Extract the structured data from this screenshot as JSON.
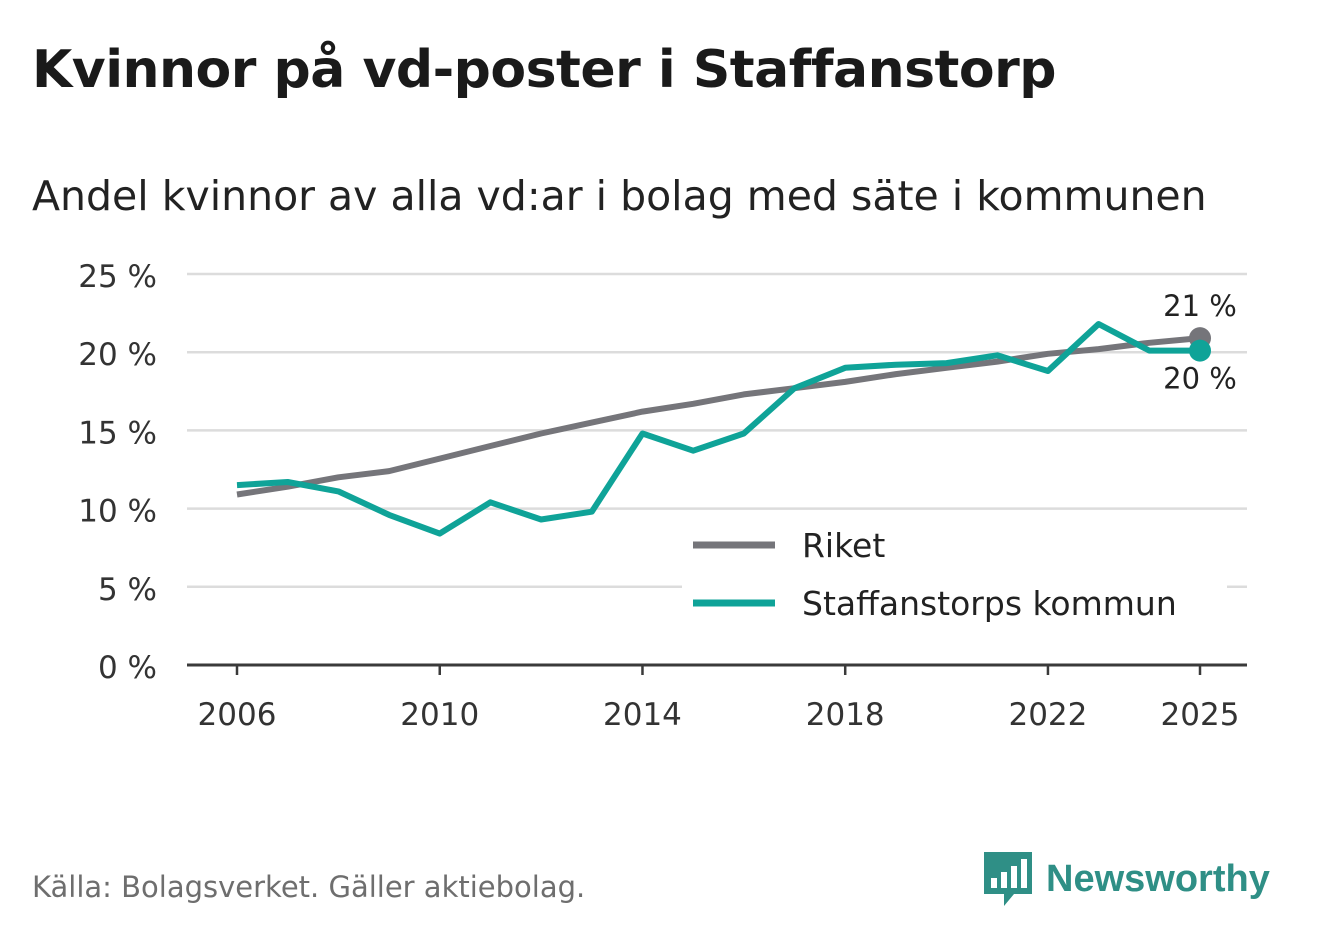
{
  "title": "Kvinnor på vd-poster i Staffanstorp",
  "subtitle": "Andel kvinnor av alla vd:ar i bolag med säte i kommunen",
  "source": "Källa: Bolagsverket. Gäller aktiebolag.",
  "brand": {
    "name": "Newsworthy",
    "icon": "newsworthy-logo-icon"
  },
  "colors": {
    "riket": "#75757a",
    "staffanstorp": "#0fa398",
    "grid": "#dcdcdc",
    "axis": "#3a3a3a",
    "brand": "#2f8f86"
  },
  "chart_data": {
    "type": "line",
    "title": "Kvinnor på vd-poster i Staffanstorp",
    "ylabel": "",
    "xlabel": "",
    "ylim": [
      0,
      25
    ],
    "xlim": [
      2006,
      2025
    ],
    "yticks": [
      0,
      5,
      10,
      15,
      20,
      25
    ],
    "ytick_labels": [
      "0 %",
      "5 %",
      "10 %",
      "15 %",
      "20 %",
      "25 %"
    ],
    "xticks": [
      2006,
      2010,
      2014,
      2018,
      2022,
      2025
    ],
    "xtick_labels": [
      "2006",
      "2010",
      "2014",
      "2018",
      "2022",
      "2025"
    ],
    "grid": true,
    "legend_position": "bottom-right",
    "x": [
      2006,
      2007,
      2008,
      2009,
      2010,
      2011,
      2012,
      2013,
      2014,
      2015,
      2016,
      2017,
      2018,
      2019,
      2020,
      2021,
      2022,
      2023,
      2024,
      2025
    ],
    "series": [
      {
        "name": "Riket",
        "key": "riket",
        "values": [
          10.9,
          11.4,
          12.0,
          12.4,
          13.2,
          14.0,
          14.8,
          15.5,
          16.2,
          16.7,
          17.3,
          17.7,
          18.1,
          18.6,
          19.0,
          19.4,
          19.9,
          20.2,
          20.6,
          20.9
        ],
        "end_label": "21 %"
      },
      {
        "name": "Staffanstorps kommun",
        "key": "staffanstorp",
        "values": [
          11.5,
          11.7,
          11.1,
          9.6,
          8.4,
          10.4,
          9.3,
          9.8,
          14.8,
          13.7,
          14.8,
          17.7,
          19.0,
          19.2,
          19.3,
          19.8,
          18.8,
          21.8,
          20.1,
          20.1
        ],
        "end_label": "20 %"
      }
    ]
  }
}
